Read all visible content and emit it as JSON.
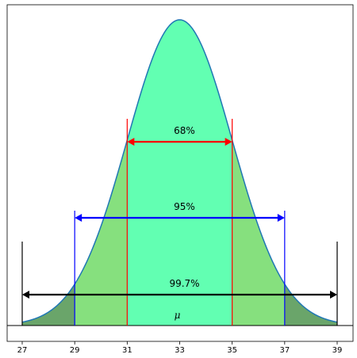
{
  "chart_data": {
    "type": "area",
    "distribution": "normal",
    "mean": 33,
    "sd": 2,
    "xlim": [
      26.4,
      39.6
    ],
    "x_ticks": [
      27,
      29,
      31,
      33,
      35,
      37,
      39
    ],
    "mean_label": "μ",
    "grid": false,
    "bands": [
      {
        "range": [
          27,
          29
        ],
        "color": "#6aa56a"
      },
      {
        "range": [
          29,
          31
        ],
        "color": "#86e07e"
      },
      {
        "range": [
          31,
          35
        ],
        "color": "#62ffb2"
      },
      {
        "range": [
          35,
          37
        ],
        "color": "#86e07e"
      },
      {
        "range": [
          37,
          39
        ],
        "color": "#6aa56a"
      }
    ],
    "intervals": [
      {
        "label": "68%",
        "from": 31,
        "to": 35,
        "color": "#ff0000"
      },
      {
        "label": "95%",
        "from": 29,
        "to": 37,
        "color": "#0000ff"
      },
      {
        "label": "99.7%",
        "from": 27,
        "to": 39,
        "color": "#000000"
      }
    ],
    "curve_color": "#1f77b4"
  }
}
